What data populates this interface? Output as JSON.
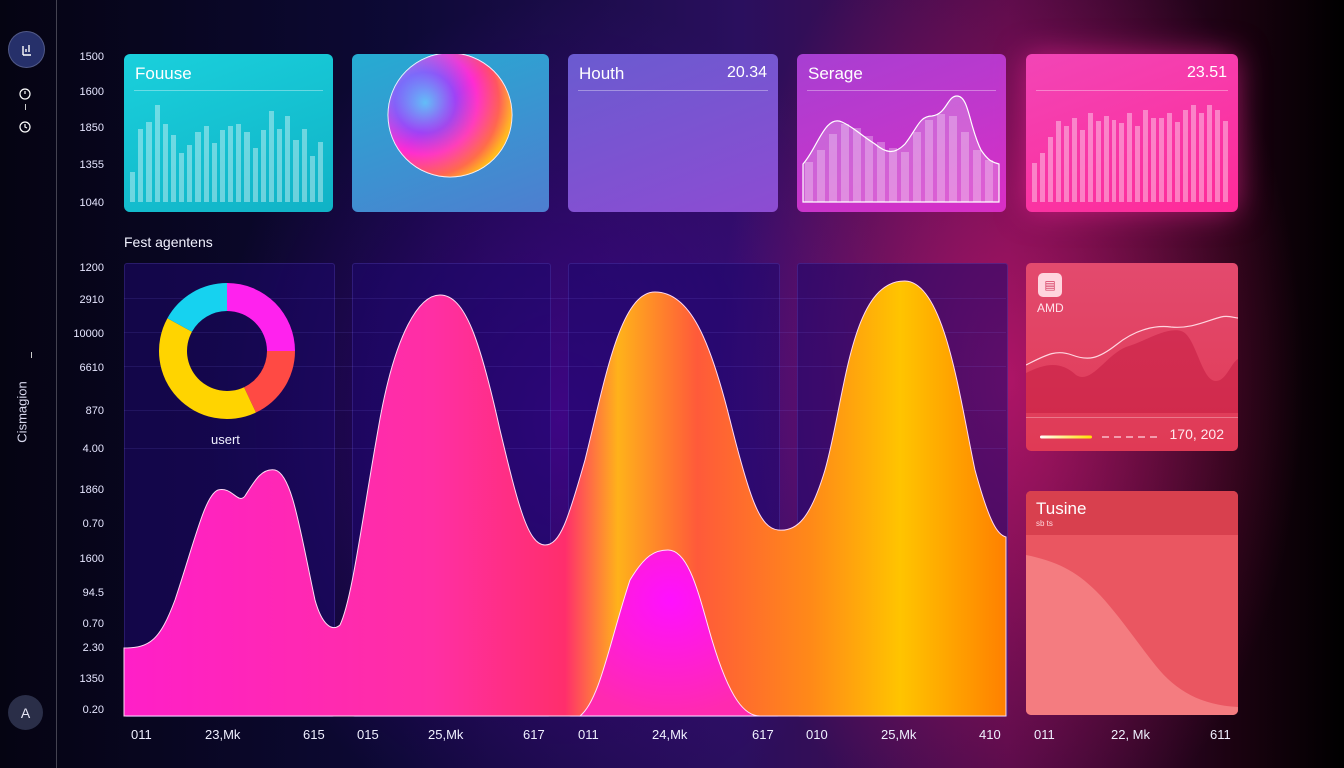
{
  "sidebar": {
    "logo_icon": "chart-icon",
    "icons": [
      "power-icon",
      "clock-icon"
    ],
    "vertical_label": "Cismagion",
    "avatar_text": "A"
  },
  "y_axis": {
    "top": [
      "1500",
      "1600",
      "1850",
      "1355",
      "1040"
    ],
    "main": [
      "1200",
      "2910",
      "10000",
      "6610",
      "870",
      "4.00",
      "1860",
      "0.70",
      "1600",
      "94.5",
      "0.70",
      "2.30",
      "1350",
      "0.20"
    ]
  },
  "x_axis": [
    {
      "ticks": [
        "011",
        "23,Mk",
        "615"
      ]
    },
    {
      "ticks": [
        "015",
        "25,Mk",
        "617"
      ]
    },
    {
      "ticks": [
        "011",
        "24,Mk",
        "617"
      ]
    },
    {
      "ticks": [
        "010",
        "25,Mk",
        "410"
      ]
    },
    {
      "ticks": [
        "011",
        "22, Mk",
        "611"
      ]
    }
  ],
  "cards": [
    {
      "title": "Fouuse",
      "value": "",
      "color_from": "#17c9d6",
      "color_to": "#12b3c8",
      "bar_values": [
        0.28,
        0.68,
        0.74,
        0.9,
        0.72,
        0.62,
        0.45,
        0.53,
        0.65,
        0.7,
        0.55,
        0.67,
        0.7,
        0.72,
        0.65,
        0.5,
        0.67,
        0.84,
        0.68,
        0.8,
        0.57,
        0.68,
        0.43,
        0.56
      ]
    },
    {
      "title": "",
      "value": "",
      "color_from": "#2fa9cf",
      "color_to": "#4a86d0"
    },
    {
      "title": "Houth",
      "value": "20.34",
      "color_from": "#6c56c6",
      "color_to": "#8b4fd0"
    },
    {
      "title": "Serage",
      "value": "",
      "color_from": "#b13fd0",
      "color_to": "#d22fc8"
    },
    {
      "title": "",
      "value": "23.51",
      "color_from": "#f23fb3",
      "color_to": "#ff2a9a",
      "bar_values": [
        0.36,
        0.45,
        0.6,
        0.75,
        0.7,
        0.78,
        0.67,
        0.82,
        0.75,
        0.8,
        0.76,
        0.73,
        0.82,
        0.7,
        0.85,
        0.78,
        0.78,
        0.82,
        0.74,
        0.85,
        0.9,
        0.82,
        0.9,
        0.85,
        0.75
      ]
    }
  ],
  "section_title": "Fest agentens",
  "donut": {
    "label": "usert",
    "segments": [
      {
        "value": 25,
        "color": "#ff22ee"
      },
      {
        "value": 18,
        "color": "#ff4a44"
      },
      {
        "value": 40,
        "color": "#ffd400"
      },
      {
        "value": 17,
        "color": "#16d2f0"
      }
    ]
  },
  "amd_card": {
    "icon": "document-icon",
    "label": "AMD",
    "value": "170, 202"
  },
  "tusine_card": {
    "title": "Tusine",
    "subtitle": "sb ts"
  }
}
